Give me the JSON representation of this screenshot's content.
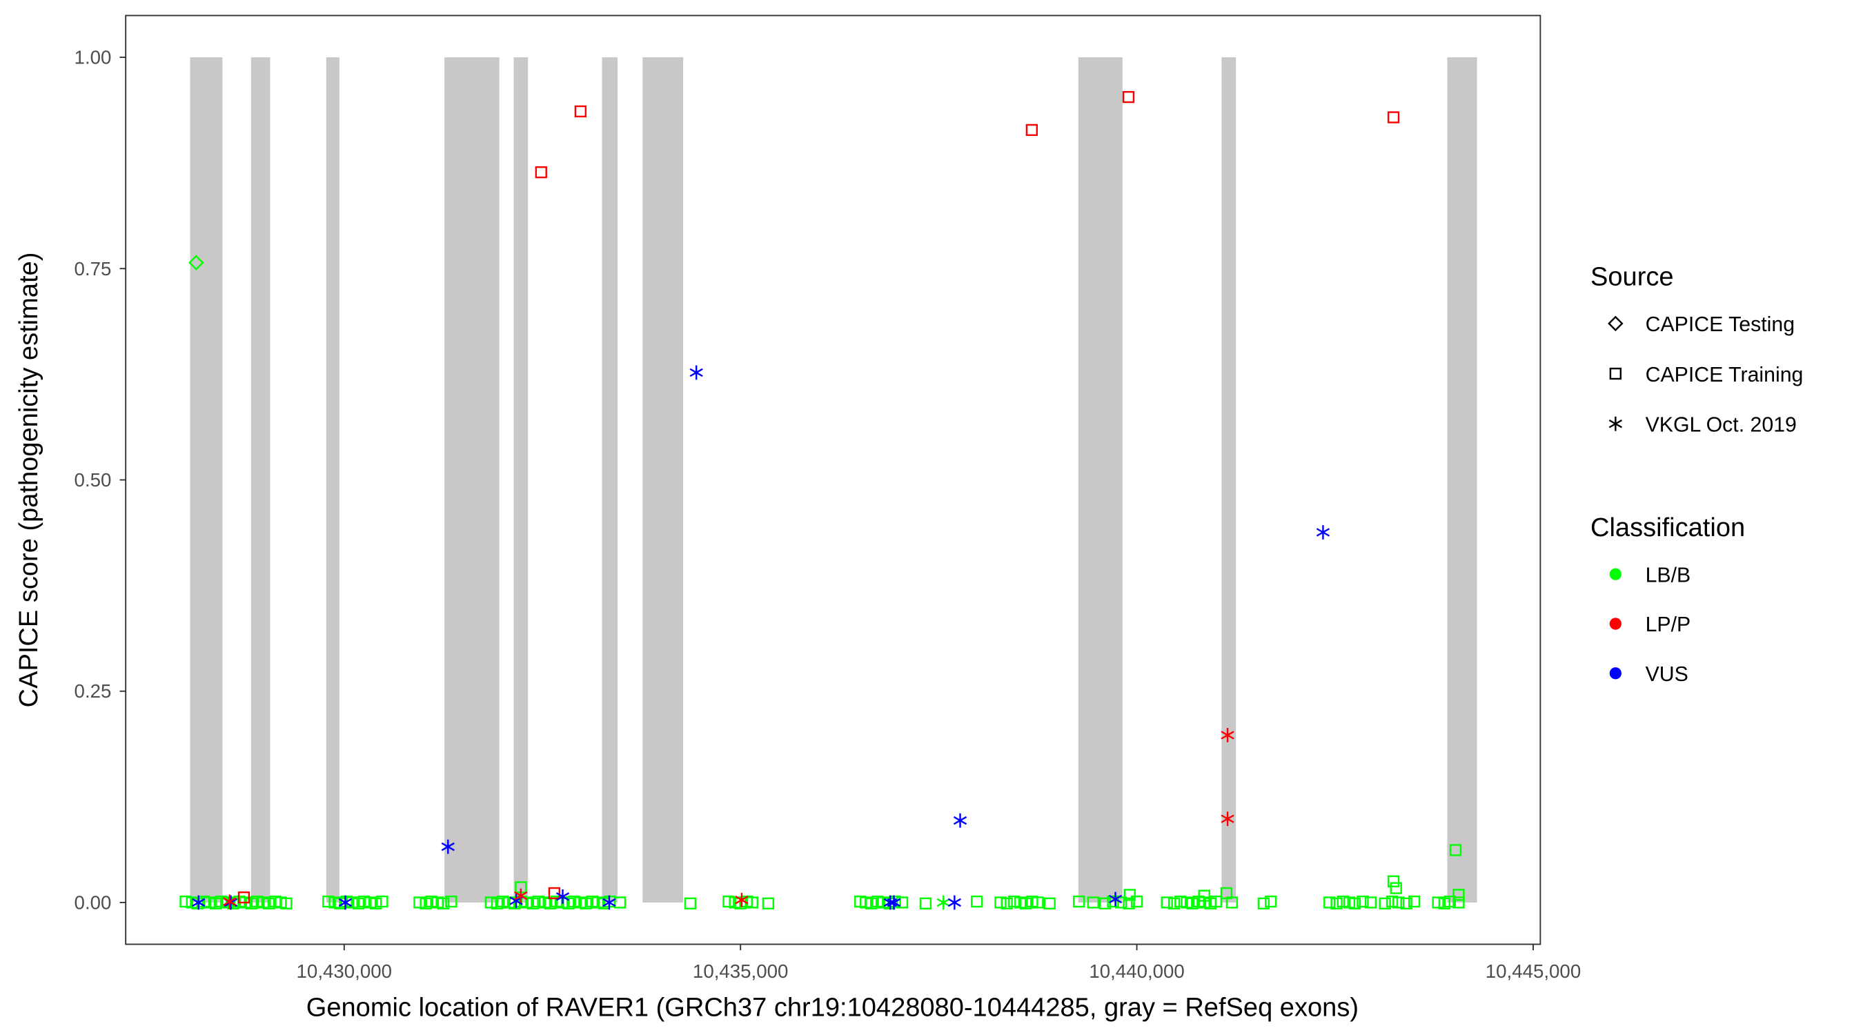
{
  "chart_data": {
    "type": "scatter",
    "xlabel": "Genomic location of RAVER1 (GRCh37 chr19:10428080-10444285, gray = RefSeq exons)",
    "ylabel": "CAPICE score (pathogenicity estimate)",
    "xlim": [
      10427300,
      10445000
    ],
    "ylim": [
      -0.047,
      1.047
    ],
    "x_ticks": [
      10430000,
      10435000,
      10440000,
      10445000
    ],
    "x_tick_labels": [
      "10,430,000",
      "10,435,000",
      "10,440,000",
      "10,445,000"
    ],
    "y_ticks": [
      0,
      0.25,
      0.5,
      0.75,
      1.0
    ],
    "y_tick_labels": [
      "0.00",
      "0.25",
      "0.50",
      "0.75",
      "1.00"
    ],
    "grid": false,
    "exon_color": "#c8c8c8",
    "exons": [
      [
        10428057,
        10428464
      ],
      [
        10428825,
        10429066
      ],
      [
        10429774,
        10429940
      ],
      [
        10431265,
        10431958
      ],
      [
        10432139,
        10432319
      ],
      [
        10433253,
        10433449
      ],
      [
        10433765,
        10434277
      ],
      [
        10439262,
        10439819
      ],
      [
        10441069,
        10441250
      ],
      [
        10443916,
        10444292
      ]
    ],
    "legend": {
      "position": "right",
      "source_title": "Source",
      "sources": [
        {
          "key": "testing",
          "label": "CAPICE Testing",
          "shape": "diamond"
        },
        {
          "key": "training",
          "label": "CAPICE Training",
          "shape": "square"
        },
        {
          "key": "vkgl",
          "label": "VKGL Oct. 2019",
          "shape": "asterisk"
        }
      ],
      "class_title": "Classification",
      "classes": [
        {
          "key": "LB/B",
          "label": "LB/B",
          "color": "#00ff00"
        },
        {
          "key": "LP/P",
          "label": "LP/P",
          "color": "#ff0000"
        },
        {
          "key": "VUS",
          "label": "VUS",
          "color": "#0000ff"
        }
      ]
    },
    "lbb_training_near_zero_x": [
      10428000,
      10428080,
      10428150,
      10428230,
      10428300,
      10428380,
      10428450,
      10428530,
      10428600,
      10428680,
      10428750,
      10428830,
      10428900,
      10428980,
      10429050,
      10429130,
      10429200,
      10429270,
      10429800,
      10429880,
      10429950,
      10430030,
      10430100,
      10430180,
      10430250,
      10430330,
      10430400,
      10430480,
      10430950,
      10431030,
      10431100,
      10431180,
      10431250,
      10431350,
      10431850,
      10431930,
      10432000,
      10432080,
      10432150,
      10432230,
      10432300,
      10432380,
      10432450,
      10432530,
      10432600,
      10432680,
      10432750,
      10432830,
      10432900,
      10432980,
      10433050,
      10433130,
      10433200,
      10433280,
      10433350,
      10433480,
      10434367,
      10434850,
      10434930,
      10435000,
      10435080,
      10435150,
      10435350,
      10436510,
      10436580,
      10436650,
      10436730,
      10436800,
      10436880,
      10436950,
      10437040,
      10437335,
      10437982,
      10438280,
      10438360,
      10438450,
      10438530,
      10438600,
      10438680,
      10438750,
      10438900,
      10439270,
      10439450,
      10439600,
      10439700,
      10439800,
      10439900,
      10440000,
      10440380,
      10440470,
      10440550,
      10440630,
      10440700,
      10440780,
      10440850,
      10440930,
      10441000,
      10441200,
      10441600,
      10441690,
      10442430,
      10442520,
      10442600,
      10442680,
      10442750,
      10442850,
      10442950,
      10443130,
      10443220,
      10443300,
      10443400,
      10443500,
      10443800,
      10443880,
      10443950,
      10444060
    ],
    "points": [
      {
        "x": 10428133,
        "y": 0.757,
        "source": "testing",
        "class": "LB/B"
      },
      {
        "x": 10432485,
        "y": 0.864,
        "source": "training",
        "class": "LP/P"
      },
      {
        "x": 10432982,
        "y": 0.936,
        "source": "training",
        "class": "LP/P"
      },
      {
        "x": 10438675,
        "y": 0.914,
        "source": "training",
        "class": "LP/P"
      },
      {
        "x": 10439895,
        "y": 0.953,
        "source": "training",
        "class": "LP/P"
      },
      {
        "x": 10443238,
        "y": 0.929,
        "source": "training",
        "class": "LP/P"
      },
      {
        "x": 10432651,
        "y": 0.011,
        "source": "training",
        "class": "LP/P"
      },
      {
        "x": 10428735,
        "y": 0.006,
        "source": "training",
        "class": "LP/P"
      },
      {
        "x": 10444021,
        "y": 0.062,
        "source": "training",
        "class": "LB/B"
      },
      {
        "x": 10443238,
        "y": 0.025,
        "source": "training",
        "class": "LB/B"
      },
      {
        "x": 10443270,
        "y": 0.017,
        "source": "training",
        "class": "LB/B"
      },
      {
        "x": 10432229,
        "y": 0.018,
        "source": "training",
        "class": "LB/B"
      },
      {
        "x": 10441130,
        "y": 0.011,
        "source": "training",
        "class": "LB/B"
      },
      {
        "x": 10439910,
        "y": 0.009,
        "source": "training",
        "class": "LB/B"
      },
      {
        "x": 10440850,
        "y": 0.008,
        "source": "training",
        "class": "LB/B"
      },
      {
        "x": 10444060,
        "y": 0.009,
        "source": "training",
        "class": "LB/B"
      },
      {
        "x": 10437560,
        "y": 0.0,
        "source": "vkgl",
        "class": "LB/B"
      },
      {
        "x": 10434443,
        "y": 0.627,
        "source": "vkgl",
        "class": "VUS"
      },
      {
        "x": 10431310,
        "y": 0.066,
        "source": "vkgl",
        "class": "VUS"
      },
      {
        "x": 10437771,
        "y": 0.097,
        "source": "vkgl",
        "class": "VUS"
      },
      {
        "x": 10442349,
        "y": 0.438,
        "source": "vkgl",
        "class": "VUS"
      },
      {
        "x": 10428163,
        "y": 0.0,
        "source": "vkgl",
        "class": "VUS"
      },
      {
        "x": 10428570,
        "y": 0.0,
        "source": "vkgl",
        "class": "VUS"
      },
      {
        "x": 10430015,
        "y": 0.0,
        "source": "vkgl",
        "class": "VUS"
      },
      {
        "x": 10432170,
        "y": 0.002,
        "source": "vkgl",
        "class": "VUS"
      },
      {
        "x": 10432757,
        "y": 0.007,
        "source": "vkgl",
        "class": "VUS"
      },
      {
        "x": 10433344,
        "y": 0.0,
        "source": "vkgl",
        "class": "VUS"
      },
      {
        "x": 10436890,
        "y": 0.0,
        "source": "vkgl",
        "class": "VUS"
      },
      {
        "x": 10436935,
        "y": 0.0,
        "source": "vkgl",
        "class": "VUS"
      },
      {
        "x": 10437700,
        "y": 0.0,
        "source": "vkgl",
        "class": "VUS"
      },
      {
        "x": 10439730,
        "y": 0.004,
        "source": "vkgl",
        "class": "VUS"
      },
      {
        "x": 10441145,
        "y": 0.198,
        "source": "vkgl",
        "class": "LP/P"
      },
      {
        "x": 10441145,
        "y": 0.099,
        "source": "vkgl",
        "class": "LP/P"
      },
      {
        "x": 10435015,
        "y": 0.003,
        "source": "vkgl",
        "class": "LP/P"
      },
      {
        "x": 10432229,
        "y": 0.008,
        "source": "vkgl",
        "class": "LP/P"
      },
      {
        "x": 10428555,
        "y": 0.001,
        "source": "vkgl",
        "class": "LP/P"
      }
    ]
  }
}
